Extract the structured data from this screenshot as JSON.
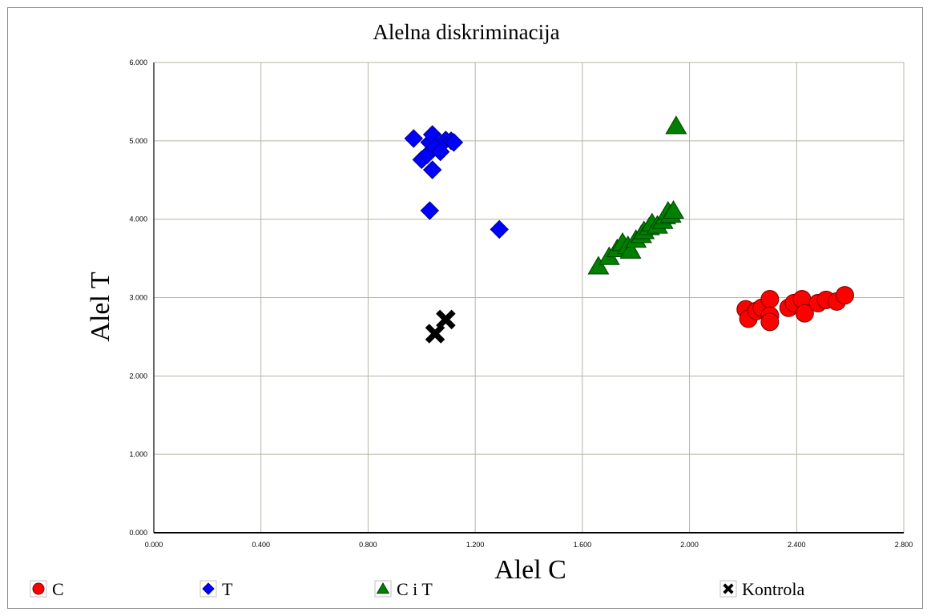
{
  "chart_data": {
    "type": "scatter",
    "title": "Alelna diskriminacija",
    "xlabel": "Alel C",
    "ylabel": "Alel T",
    "xlim": [
      0,
      2.8
    ],
    "ylim": [
      0,
      6
    ],
    "xticks": [
      0,
      0.4,
      0.8,
      1.2,
      1.6,
      2.0,
      2.4,
      2.8
    ],
    "yticks": [
      0,
      1,
      2,
      3,
      4,
      5,
      6
    ],
    "xtick_labels": [
      "0.000",
      "0.400",
      "0.800",
      "1.200",
      "1.600",
      "2.000",
      "2.400",
      "2.800"
    ],
    "ytick_labels": [
      "0.000",
      "1.000",
      "2.000",
      "3.000",
      "4.000",
      "5.000",
      "6.000"
    ],
    "grid": true,
    "legend_position": "bottom",
    "series": [
      {
        "name": "C",
        "color": "#ff0000",
        "marker": "circle",
        "points": [
          [
            2.21,
            2.85
          ],
          [
            2.22,
            2.73
          ],
          [
            2.25,
            2.83
          ],
          [
            2.27,
            2.87
          ],
          [
            2.3,
            2.98
          ],
          [
            2.3,
            2.77
          ],
          [
            2.3,
            2.69
          ],
          [
            2.37,
            2.87
          ],
          [
            2.39,
            2.93
          ],
          [
            2.42,
            2.98
          ],
          [
            2.43,
            2.8
          ],
          [
            2.48,
            2.93
          ],
          [
            2.51,
            2.97
          ],
          [
            2.55,
            2.95
          ],
          [
            2.58,
            3.03
          ]
        ]
      },
      {
        "name": "T",
        "color": "#0000ff",
        "marker": "diamond",
        "points": [
          [
            0.97,
            5.03
          ],
          [
            1.0,
            4.76
          ],
          [
            1.02,
            4.82
          ],
          [
            1.03,
            4.98
          ],
          [
            1.04,
            5.08
          ],
          [
            1.05,
            4.92
          ],
          [
            1.04,
            4.63
          ],
          [
            1.07,
            4.86
          ],
          [
            1.09,
            5.01
          ],
          [
            1.11,
            5.0
          ],
          [
            1.12,
            4.98
          ],
          [
            1.03,
            4.11
          ],
          [
            1.29,
            3.87
          ]
        ]
      },
      {
        "name": "C i T",
        "color": "#008000",
        "marker": "triangle",
        "points": [
          [
            1.66,
            3.4
          ],
          [
            1.7,
            3.52
          ],
          [
            1.73,
            3.62
          ],
          [
            1.75,
            3.7
          ],
          [
            1.77,
            3.66
          ],
          [
            1.78,
            3.6
          ],
          [
            1.8,
            3.74
          ],
          [
            1.82,
            3.8
          ],
          [
            1.83,
            3.85
          ],
          [
            1.85,
            3.9
          ],
          [
            1.86,
            3.95
          ],
          [
            1.88,
            3.92
          ],
          [
            1.9,
            3.98
          ],
          [
            1.91,
            4.04
          ],
          [
            1.92,
            4.1
          ],
          [
            1.93,
            4.06
          ],
          [
            1.94,
            4.11
          ],
          [
            1.95,
            5.19
          ]
        ]
      },
      {
        "name": "Kontrola",
        "color": "#000000",
        "marker": "x",
        "points": [
          [
            1.05,
            2.54
          ],
          [
            1.09,
            2.72
          ]
        ]
      }
    ]
  }
}
